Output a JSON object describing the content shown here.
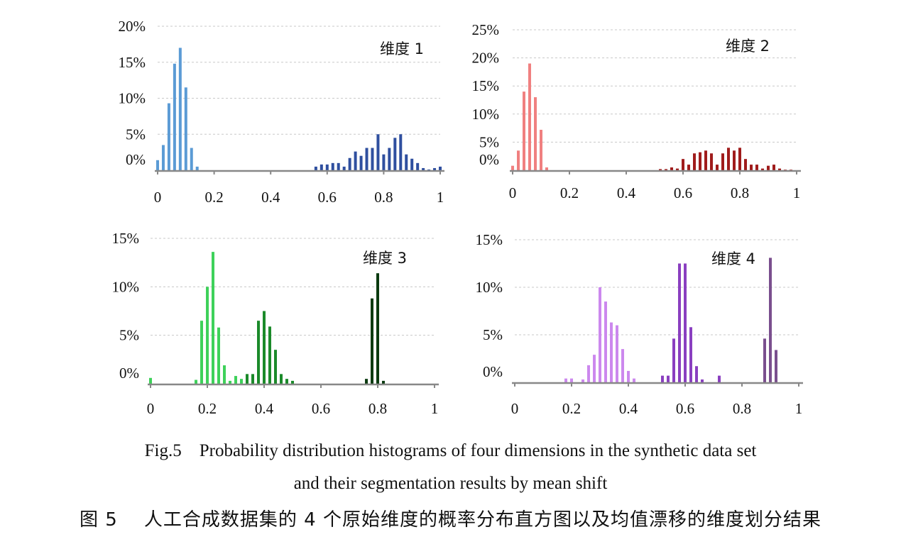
{
  "chart_data": [
    {
      "type": "bar",
      "title": "维度 1",
      "xlim": [
        0,
        1
      ],
      "ylim": [
        0,
        20
      ],
      "x_ticks": [
        "0",
        "0.2",
        "0.4",
        "0.6",
        "0.8",
        "1"
      ],
      "y_ticks": [
        "0%",
        "5%",
        "10%",
        "15%",
        "20%"
      ],
      "grid": true,
      "series": [
        {
          "color": "#5b9bd5",
          "x": [
            0.0,
            0.02,
            0.04,
            0.06,
            0.08,
            0.1,
            0.12,
            0.14
          ],
          "values": [
            1.4,
            3.5,
            9.3,
            14.8,
            17.0,
            11.5,
            3.1,
            0.5
          ]
        },
        {
          "color": "#2f4f9f",
          "x": [
            0.56,
            0.58,
            0.6,
            0.62,
            0.64,
            0.66,
            0.68,
            0.7,
            0.72,
            0.74,
            0.76,
            0.78,
            0.8,
            0.82,
            0.84,
            0.86,
            0.88,
            0.9,
            0.92,
            0.94,
            0.96,
            0.98,
            1.0
          ],
          "values": [
            0.5,
            0.8,
            0.8,
            1.0,
            1.0,
            0.5,
            1.7,
            2.6,
            2.0,
            3.1,
            3.1,
            5.0,
            2.2,
            3.1,
            4.5,
            5.0,
            2.2,
            1.6,
            1.0,
            0.3,
            0.1,
            0.3,
            0.5
          ]
        }
      ]
    },
    {
      "type": "bar",
      "title": "维度 2",
      "xlim": [
        0,
        1
      ],
      "ylim": [
        0,
        25
      ],
      "x_ticks": [
        "0",
        "0.2",
        "0.4",
        "0.6",
        "0.8",
        "1"
      ],
      "y_ticks": [
        "0%",
        "5%",
        "10%",
        "15%",
        "20%",
        "25%"
      ],
      "grid": true,
      "series": [
        {
          "color": "#f08080",
          "x": [
            0.0,
            0.02,
            0.04,
            0.06,
            0.08,
            0.1,
            0.12
          ],
          "values": [
            0.8,
            3.5,
            14.0,
            19.0,
            13.0,
            7.2,
            0.5
          ]
        },
        {
          "color": "#a01c1c",
          "x": [
            0.52,
            0.54,
            0.56,
            0.58,
            0.6,
            0.62,
            0.64,
            0.66,
            0.68,
            0.7,
            0.72,
            0.74,
            0.76,
            0.78,
            0.8,
            0.82,
            0.84,
            0.86,
            0.88,
            0.9,
            0.92,
            0.94,
            0.96,
            0.98
          ],
          "values": [
            0.2,
            0.2,
            0.5,
            0.3,
            2.0,
            1.0,
            3.0,
            3.2,
            3.5,
            3.0,
            1.0,
            3.0,
            4.0,
            3.5,
            4.0,
            2.0,
            1.0,
            1.0,
            0.3,
            0.8,
            1.0,
            0.3,
            0.1,
            0.1
          ]
        }
      ]
    },
    {
      "type": "bar",
      "title": "维度 3",
      "xlim": [
        0,
        1
      ],
      "ylim": [
        0,
        15
      ],
      "x_ticks": [
        "0",
        "0.2",
        "0.4",
        "0.6",
        "0.8",
        "1"
      ],
      "y_ticks": [
        "0%",
        "5%",
        "10%",
        "15%"
      ],
      "grid": true,
      "series": [
        {
          "color": "#3ed15a",
          "x": [
            0.0,
            0.16,
            0.18,
            0.2,
            0.22,
            0.24,
            0.26,
            0.28,
            0.3,
            0.32
          ],
          "values": [
            0.6,
            0.4,
            6.5,
            10.0,
            13.6,
            5.8,
            1.9,
            0.3,
            0.8,
            0.5
          ]
        },
        {
          "color": "#1b8a2a",
          "x": [
            0.34,
            0.36,
            0.38,
            0.4,
            0.42,
            0.44,
            0.46,
            0.48,
            0.5
          ],
          "values": [
            1.0,
            1.0,
            6.5,
            7.5,
            5.9,
            3.5,
            1.0,
            0.5,
            0.3
          ]
        },
        {
          "color": "#0b3b10",
          "x": [
            0.76,
            0.78,
            0.8,
            0.82
          ],
          "values": [
            0.5,
            8.8,
            11.4,
            0.3
          ]
        }
      ]
    },
    {
      "type": "bar",
      "title": "维度 4",
      "xlim": [
        0,
        1
      ],
      "ylim": [
        0,
        15
      ],
      "x_ticks": [
        "0",
        "0.2",
        "0.4",
        "0.6",
        "0.8",
        "1"
      ],
      "y_ticks": [
        "0%",
        "5%",
        "10%",
        "15%"
      ],
      "grid": true,
      "series": [
        {
          "color": "#cc88ee",
          "x": [
            0.18,
            0.2,
            0.24,
            0.26,
            0.28,
            0.3,
            0.32,
            0.34,
            0.36,
            0.38,
            0.4,
            0.42
          ],
          "values": [
            0.4,
            0.4,
            0.3,
            1.8,
            2.9,
            10.0,
            8.5,
            6.3,
            6.0,
            3.5,
            1.2,
            0.4
          ]
        },
        {
          "color": "#8a3fc0",
          "x": [
            0.52,
            0.54,
            0.56,
            0.58,
            0.6,
            0.62,
            0.64,
            0.66,
            0.72
          ],
          "values": [
            0.7,
            0.7,
            4.6,
            12.5,
            12.5,
            5.8,
            1.7,
            0.3,
            0.7
          ]
        },
        {
          "color": "#7a4f8e",
          "x": [
            0.88,
            0.9,
            0.92
          ],
          "values": [
            4.6,
            13.1,
            3.4
          ]
        }
      ]
    }
  ],
  "caption": {
    "en_line1": "Fig.5    Probability distribution histograms of four dimensions in the synthetic data set",
    "en_line2": "and their segmentation results by mean shift",
    "zh": "图 5    人工合成数据集的 4 个原始维度的概率分布直方图以及均值漂移的维度划分结果"
  }
}
